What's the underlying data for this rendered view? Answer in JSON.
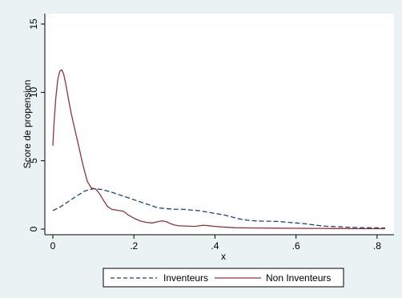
{
  "chart_data": {
    "type": "line",
    "title": "",
    "xlabel": "x",
    "ylabel": "Score de propension",
    "xlim": [
      0,
      0.83
    ],
    "ylim": [
      0,
      15
    ],
    "grid": false,
    "legend_position": "bottom",
    "x_ticks": [
      {
        "value": 0,
        "label": "0"
      },
      {
        "value": 0.2,
        "label": ".2"
      },
      {
        "value": 0.4,
        "label": ".4"
      },
      {
        "value": 0.6,
        "label": ".6"
      },
      {
        "value": 0.8,
        "label": ".8"
      }
    ],
    "y_ticks": [
      {
        "value": 0,
        "label": "0"
      },
      {
        "value": 5,
        "label": "5"
      },
      {
        "value": 10,
        "label": "10"
      },
      {
        "value": 15,
        "label": "15"
      }
    ],
    "series": [
      {
        "name": "Inventeurs",
        "color": "#1a476f",
        "dash": "dashed",
        "points": [
          [
            0.0,
            1.35
          ],
          [
            0.02,
            1.65
          ],
          [
            0.04,
            2.05
          ],
          [
            0.06,
            2.45
          ],
          [
            0.08,
            2.8
          ],
          [
            0.1,
            2.95
          ],
          [
            0.12,
            2.9
          ],
          [
            0.14,
            2.75
          ],
          [
            0.16,
            2.55
          ],
          [
            0.18,
            2.35
          ],
          [
            0.2,
            2.15
          ],
          [
            0.22,
            1.95
          ],
          [
            0.24,
            1.75
          ],
          [
            0.26,
            1.55
          ],
          [
            0.28,
            1.5
          ],
          [
            0.3,
            1.45
          ],
          [
            0.32,
            1.45
          ],
          [
            0.34,
            1.4
          ],
          [
            0.36,
            1.35
          ],
          [
            0.38,
            1.25
          ],
          [
            0.4,
            1.15
          ],
          [
            0.42,
            1.05
          ],
          [
            0.44,
            0.9
          ],
          [
            0.46,
            0.75
          ],
          [
            0.48,
            0.65
          ],
          [
            0.5,
            0.6
          ],
          [
            0.52,
            0.58
          ],
          [
            0.54,
            0.58
          ],
          [
            0.56,
            0.55
          ],
          [
            0.58,
            0.5
          ],
          [
            0.6,
            0.45
          ],
          [
            0.62,
            0.4
          ],
          [
            0.64,
            0.32
          ],
          [
            0.66,
            0.25
          ],
          [
            0.68,
            0.2
          ],
          [
            0.7,
            0.18
          ],
          [
            0.72,
            0.15
          ],
          [
            0.74,
            0.12
          ],
          [
            0.76,
            0.1
          ],
          [
            0.78,
            0.1
          ],
          [
            0.8,
            0.09
          ],
          [
            0.82,
            0.08
          ]
        ]
      },
      {
        "name": "Non Inventeurs",
        "color": "#90353b",
        "dash": "solid",
        "points": [
          [
            0.0,
            6.1
          ],
          [
            0.003,
            7.8
          ],
          [
            0.007,
            9.5
          ],
          [
            0.012,
            10.9
          ],
          [
            0.017,
            11.55
          ],
          [
            0.022,
            11.65
          ],
          [
            0.027,
            11.3
          ],
          [
            0.032,
            10.6
          ],
          [
            0.038,
            9.6
          ],
          [
            0.045,
            8.5
          ],
          [
            0.055,
            7.2
          ],
          [
            0.065,
            5.9
          ],
          [
            0.075,
            4.6
          ],
          [
            0.085,
            3.5
          ],
          [
            0.095,
            3.0
          ],
          [
            0.105,
            2.95
          ],
          [
            0.115,
            2.6
          ],
          [
            0.125,
            2.1
          ],
          [
            0.135,
            1.65
          ],
          [
            0.145,
            1.45
          ],
          [
            0.155,
            1.4
          ],
          [
            0.165,
            1.35
          ],
          [
            0.175,
            1.3
          ],
          [
            0.185,
            1.05
          ],
          [
            0.2,
            0.8
          ],
          [
            0.215,
            0.6
          ],
          [
            0.23,
            0.5
          ],
          [
            0.245,
            0.45
          ],
          [
            0.26,
            0.55
          ],
          [
            0.27,
            0.6
          ],
          [
            0.28,
            0.55
          ],
          [
            0.29,
            0.4
          ],
          [
            0.3,
            0.3
          ],
          [
            0.31,
            0.25
          ],
          [
            0.33,
            0.22
          ],
          [
            0.35,
            0.2
          ],
          [
            0.37,
            0.28
          ],
          [
            0.38,
            0.26
          ],
          [
            0.4,
            0.2
          ],
          [
            0.42,
            0.15
          ],
          [
            0.45,
            0.1
          ],
          [
            0.5,
            0.08
          ],
          [
            0.55,
            0.07
          ],
          [
            0.6,
            0.06
          ],
          [
            0.65,
            0.05
          ],
          [
            0.7,
            0.04
          ],
          [
            0.75,
            0.03
          ],
          [
            0.8,
            0.03
          ],
          [
            0.82,
            0.03
          ]
        ]
      }
    ]
  },
  "legend": {
    "items": [
      {
        "label": "Inventeurs",
        "color": "#1a476f",
        "dash": "dashed"
      },
      {
        "label": "Non Inventeurs",
        "color": "#90353b",
        "dash": "solid"
      }
    ]
  }
}
